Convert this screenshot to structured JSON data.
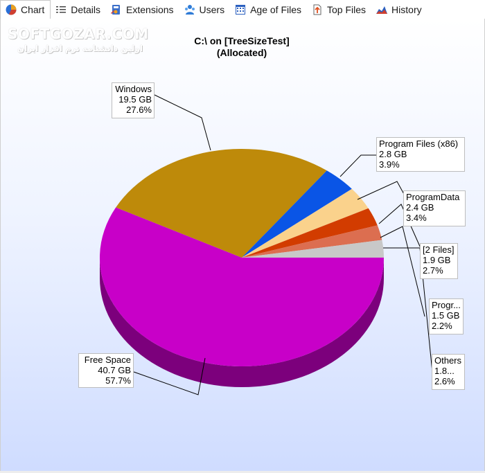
{
  "tabs": [
    {
      "label": "Chart",
      "icon": "pie-chart-icon",
      "active": true
    },
    {
      "label": "Details",
      "icon": "details-list-icon",
      "active": false
    },
    {
      "label": "Extensions",
      "icon": "extensions-icon",
      "active": false
    },
    {
      "label": "Users",
      "icon": "users-icon",
      "active": false
    },
    {
      "label": "Age of Files",
      "icon": "calendar-icon",
      "active": false
    },
    {
      "label": "Top Files",
      "icon": "top-files-icon",
      "active": false
    },
    {
      "label": "History",
      "icon": "history-icon",
      "active": false
    }
  ],
  "watermark": {
    "main": "SOFTGOZAR.COM",
    "sub": "اولین دانشنامه نرم افزار ایران"
  },
  "chart_title_line1": "C:\\  on  [TreeSizeTest]",
  "chart_title_line2": "(Allocated)",
  "chart_data": {
    "type": "pie",
    "title": "C:\\  on  [TreeSizeTest] (Allocated)",
    "slices": [
      {
        "name": "Free Space",
        "size": "40.7 GB",
        "percent": "57.7%",
        "value": 57.7,
        "color": "#c800c8"
      },
      {
        "name": "Windows",
        "size": "19.5 GB",
        "percent": "27.6%",
        "value": 27.6,
        "color": "#be8a0a"
      },
      {
        "name": "Program Files (x86)",
        "size": "2.8 GB",
        "percent": "3.9%",
        "value": 3.9,
        "color": "#0a55e6"
      },
      {
        "name": "ProgramData",
        "size": "2.4 GB",
        "percent": "3.4%",
        "value": 3.4,
        "color": "#fad28c"
      },
      {
        "name": "[2 Files]",
        "size": "1.9 GB",
        "percent": "2.7%",
        "value": 2.7,
        "color": "#d23c00"
      },
      {
        "name": "Progr...",
        "size": "1.5 GB",
        "percent": "2.2%",
        "value": 2.2,
        "color": "#dc6e50"
      },
      {
        "name": "Others",
        "size": "1.8...",
        "percent": "2.6%",
        "value": 2.6,
        "color": "#c8c8c8"
      }
    ]
  }
}
